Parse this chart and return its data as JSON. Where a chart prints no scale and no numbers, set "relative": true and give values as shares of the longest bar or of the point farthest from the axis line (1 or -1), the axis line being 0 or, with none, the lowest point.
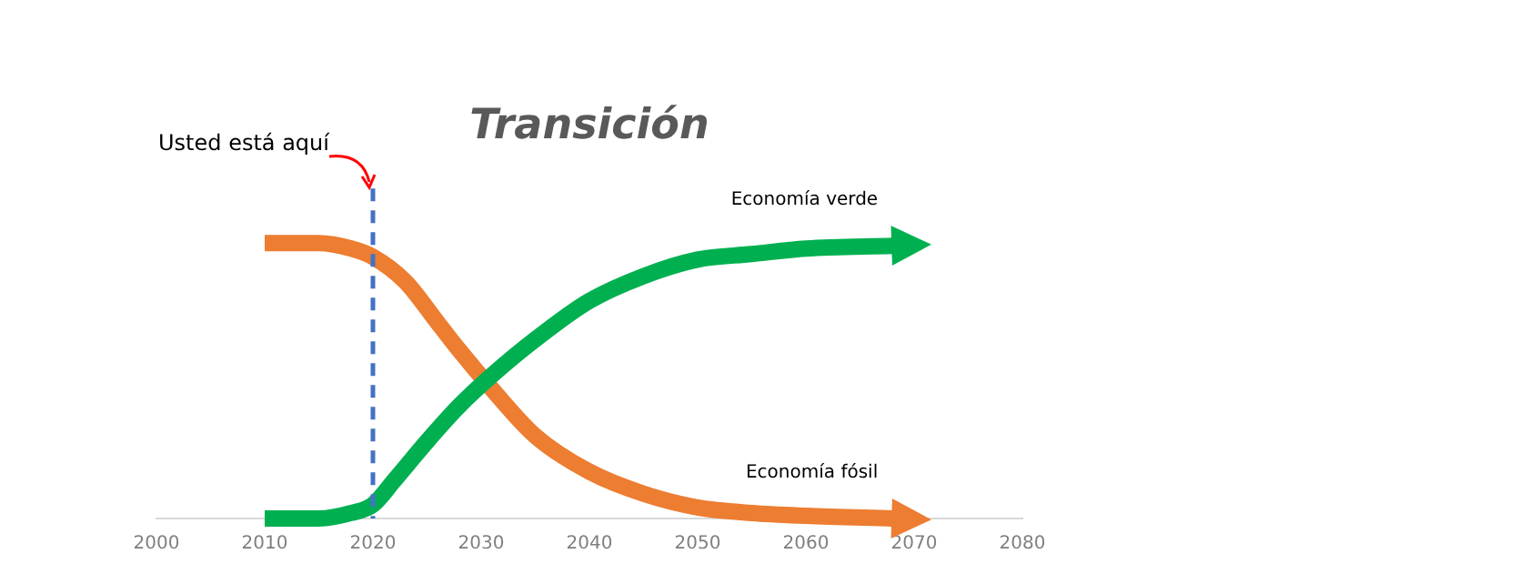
{
  "chart_data": {
    "type": "line",
    "title": "Transición",
    "relative": true,
    "xlim": [
      2000,
      2080
    ],
    "xticks": [
      2000,
      2010,
      2020,
      2030,
      2040,
      2050,
      2060,
      2070,
      2080
    ],
    "series": [
      {
        "name": "Economía verde",
        "color": "#00b050",
        "x": [
          2010,
          2015,
          2018,
          2020,
          2022,
          2025,
          2028,
          2031,
          2035,
          2040,
          2045,
          2050,
          2055,
          2060,
          2068
        ],
        "values": [
          0,
          0,
          0.02,
          0.05,
          0.14,
          0.28,
          0.41,
          0.52,
          0.65,
          0.79,
          0.88,
          0.94,
          0.96,
          0.98,
          0.99
        ]
      },
      {
        "name": "Economía fósil",
        "color": "#ed7d31",
        "x": [
          2010,
          2015,
          2018,
          2020,
          2023,
          2026,
          2028,
          2031,
          2035,
          2040,
          2045,
          2050,
          2055,
          2060,
          2068
        ],
        "values": [
          1,
          1,
          0.98,
          0.95,
          0.86,
          0.71,
          0.61,
          0.47,
          0.3,
          0.17,
          0.09,
          0.04,
          0.02,
          0.01,
          0
        ]
      }
    ],
    "ref_lines": [
      {
        "axis": "x",
        "value": 2020,
        "label": "Usted está aquí",
        "color": "#4472c4",
        "line_style": "dashed"
      }
    ],
    "grid": false,
    "legend": false,
    "marker": "none",
    "line_style": "solid"
  }
}
